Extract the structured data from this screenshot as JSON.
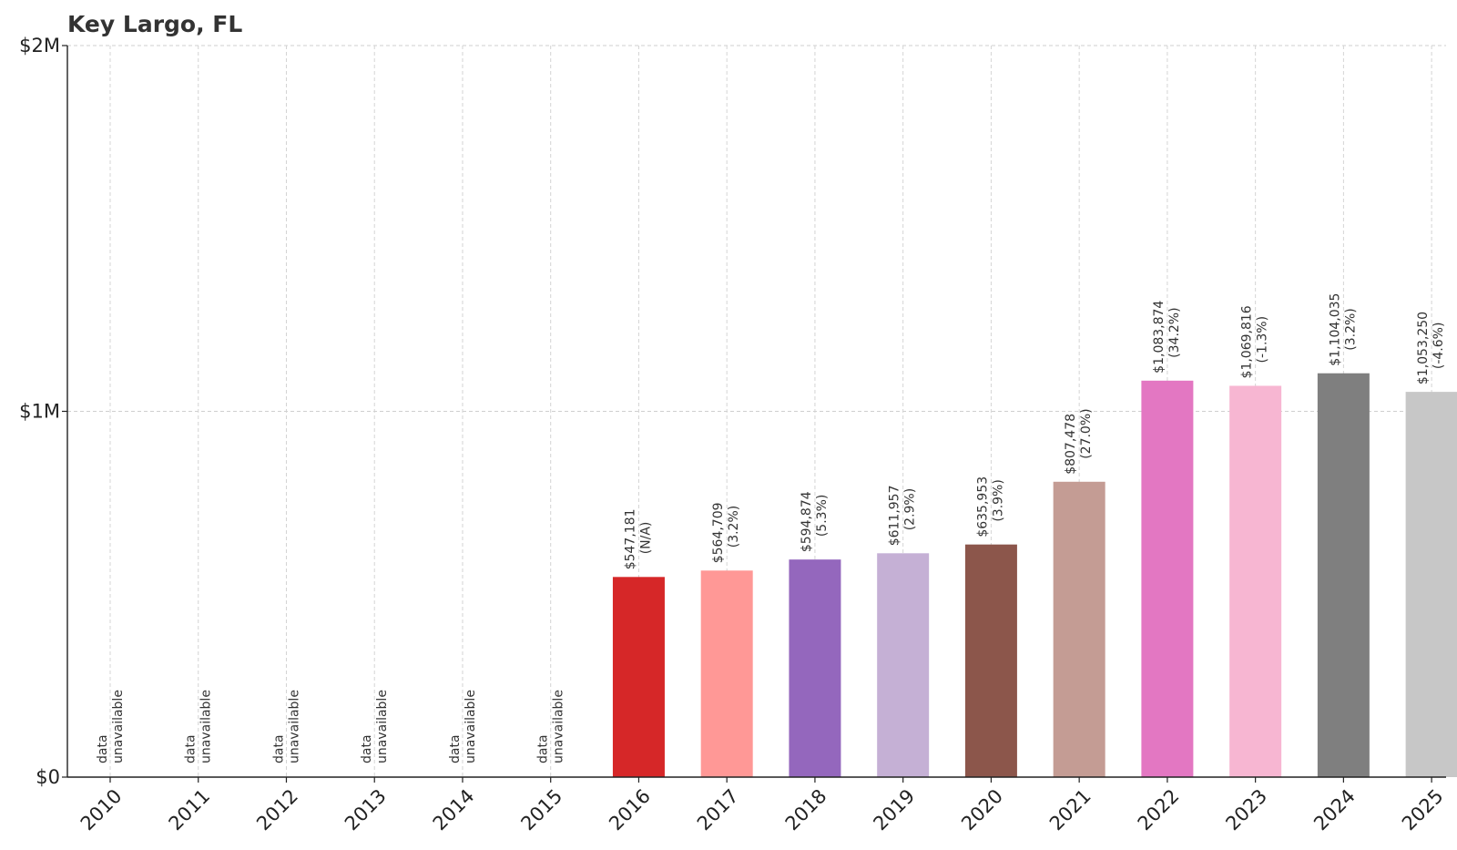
{
  "chart_data": {
    "type": "bar",
    "title": "Key Largo, FL",
    "xlabel": "",
    "ylabel": "",
    "ylim": [
      0,
      2000000
    ],
    "yticks": [
      {
        "value": 0,
        "label": "$0"
      },
      {
        "value": 1000000,
        "label": "$1M"
      },
      {
        "value": 2000000,
        "label": "$2M"
      }
    ],
    "grid": true,
    "categories": [
      "2010",
      "2011",
      "2012",
      "2013",
      "2014",
      "2015",
      "2016",
      "2017",
      "2018",
      "2019",
      "2020",
      "2021",
      "2022",
      "2023",
      "2024",
      "2025"
    ],
    "values": [
      null,
      null,
      null,
      null,
      null,
      null,
      547181,
      564709,
      594874,
      611957,
      635953,
      807478,
      1083874,
      1069816,
      1104035,
      1053250
    ],
    "value_labels": [
      "",
      "",
      "",
      "",
      "",
      "",
      "$547,181",
      "$564,709",
      "$594,874",
      "$611,957",
      "$635,953",
      "$807,478",
      "$1,083,874",
      "$1,069,816",
      "$1,104,035",
      "$1,053,250"
    ],
    "change_labels": [
      "",
      "",
      "",
      "",
      "",
      "",
      "(N/A)",
      "(3.2%)",
      "(5.3%)",
      "(2.9%)",
      "(3.9%)",
      "(27.0%)",
      "(34.2%)",
      "(-1.3%)",
      "(3.2%)",
      "(-4.6%)"
    ],
    "missing_label": [
      "data",
      "unavailable"
    ],
    "colors": [
      "#1f77b4",
      "#aec7e8",
      "#ff7f0e",
      "#ffbb78",
      "#2ca02c",
      "#98df8a",
      "#d62728",
      "#ff9896",
      "#9467bd",
      "#c5b0d5",
      "#8c564b",
      "#c49c94",
      "#e377c2",
      "#f7b6d2",
      "#7f7f7f",
      "#c7c7c7"
    ]
  }
}
